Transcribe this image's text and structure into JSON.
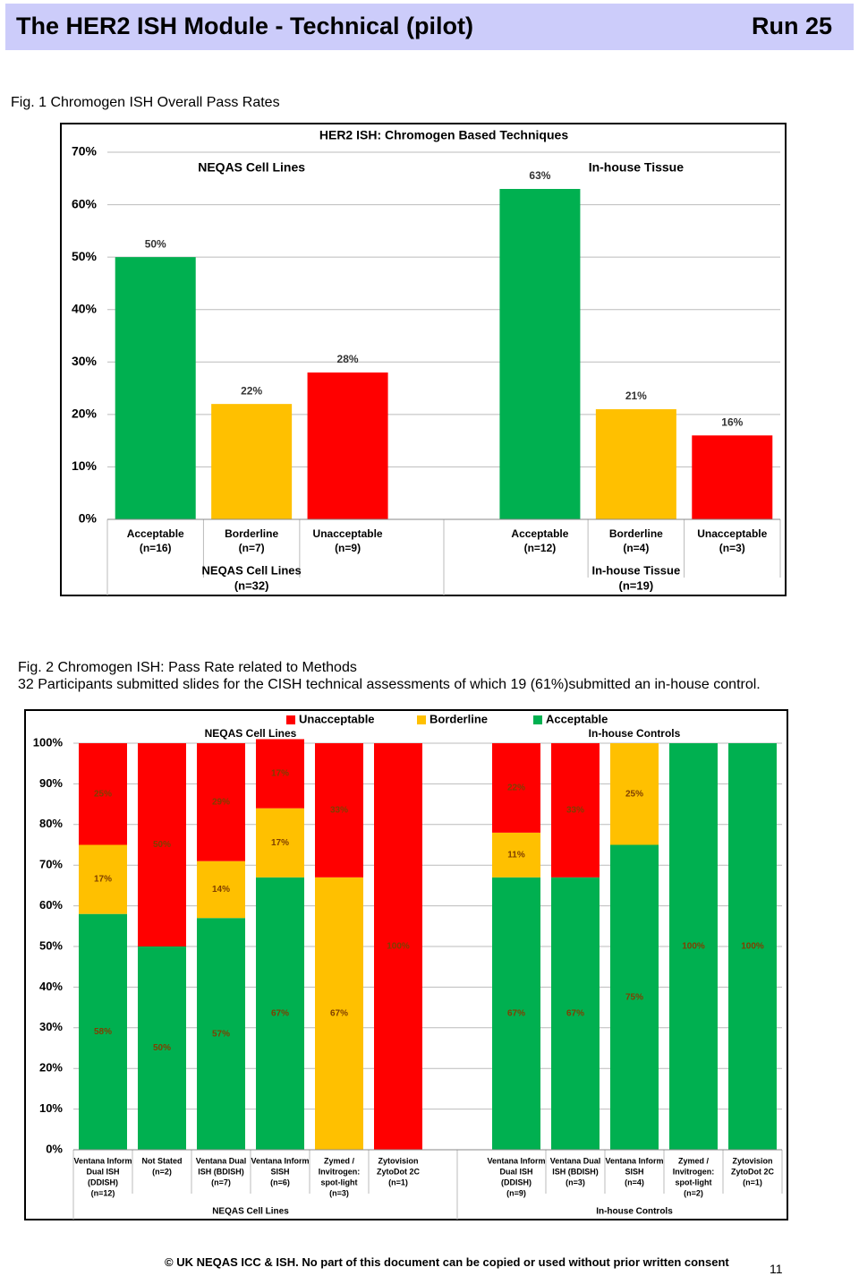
{
  "header": {
    "title": "The HER2 ISH Module - Technical (pilot)",
    "run": "Run 25"
  },
  "figures": [
    {
      "caption": "Fig. 1 Chromogen ISH Overall Pass Rates"
    },
    {
      "caption": "Fig. 2 Chromogen ISH: Pass Rate related to Methods",
      "description": "32 Participants submitted slides for the CISH technical assessments of which 19 (61%)submitted an in-house control."
    }
  ],
  "chart_data": [
    {
      "type": "bar",
      "title": "HER2 ISH: Chromogen Based Techniques",
      "categories": [
        [
          "Acceptable",
          "(n=16)"
        ],
        [
          "Borderline",
          "(n=7)"
        ],
        [
          "Unacceptable",
          "(n=9)"
        ],
        null,
        [
          "Acceptable",
          "(n=12)"
        ],
        [
          "Borderline",
          "(n=4)"
        ],
        [
          "Unacceptable",
          "(n=3)"
        ]
      ],
      "values": [
        50,
        22,
        28,
        null,
        63,
        21,
        16
      ],
      "value_labels": [
        "50%",
        "22%",
        "28%",
        null,
        "63%",
        "21%",
        "16%"
      ],
      "colors": [
        "#00b050",
        "#ffc000",
        "#ff0000",
        null,
        "#00b050",
        "#ffc000",
        "#ff0000"
      ],
      "groups": [
        {
          "name": "NEQAS Cell Lines",
          "label": [
            "NEQAS Cell Lines",
            "(n=32)"
          ]
        },
        {
          "name": "In-house Tissue",
          "label": [
            "In-house Tissue",
            "(n=19)"
          ]
        }
      ],
      "ylim": [
        0,
        70
      ],
      "yticks": [
        {
          "value": 0,
          "label": "0%"
        },
        {
          "value": 10,
          "label": "10%"
        },
        {
          "value": 20,
          "label": "20%"
        },
        {
          "value": 30,
          "label": "30%"
        },
        {
          "value": 40,
          "label": "40%"
        },
        {
          "value": 50,
          "label": "50%"
        },
        {
          "value": 60,
          "label": "60%"
        },
        {
          "value": 70,
          "label": "70%"
        }
      ],
      "grid": true
    },
    {
      "type": "stacked_bar",
      "categories": [
        [
          "Ventana Inform",
          "Dual ISH",
          "(DDISH)",
          "(n=12)"
        ],
        [
          "Not Stated",
          "(n=2)"
        ],
        [
          "Ventana Dual",
          "ISH (BDISH)",
          "(n=7)"
        ],
        [
          "Ventana Inform",
          "SISH",
          "(n=6)"
        ],
        [
          "Zymed /",
          "Invitrogen:",
          "spot-light",
          "(n=3)"
        ],
        [
          "Zytovision",
          "ZytoDot 2C",
          "(n=1)"
        ],
        null,
        [
          "Ventana Inform",
          "Dual ISH",
          "(DDISH)",
          "(n=9)"
        ],
        [
          "Ventana Dual",
          "ISH (BDISH)",
          "(n=3)"
        ],
        [
          "Ventana Inform",
          "SISH",
          "(n=4)"
        ],
        [
          "Zymed /",
          "Invitrogen:",
          "spot-light",
          "(n=2)"
        ],
        [
          "Zytovision",
          "ZytoDot 2C",
          "(n=1)"
        ]
      ],
      "series": [
        {
          "name": "Acceptable",
          "color": "#00b050",
          "values": [
            58,
            50,
            57,
            67,
            null,
            null,
            null,
            67,
            67,
            75,
            100,
            100
          ],
          "value_labels": [
            "58%",
            "50%",
            "57%",
            "67%",
            null,
            null,
            null,
            "67%",
            "67%",
            "75%",
            "100%",
            "100%"
          ]
        },
        {
          "name": "Borderline",
          "color": "#ffc000",
          "values": [
            17,
            null,
            14,
            17,
            67,
            null,
            null,
            11,
            null,
            25,
            null,
            null
          ],
          "value_labels": [
            "17%",
            null,
            "14%",
            "17%",
            "67%",
            null,
            null,
            "11%",
            null,
            "25%",
            null,
            null
          ]
        },
        {
          "name": "Unacceptable",
          "color": "#ff0000",
          "values": [
            25,
            50,
            29,
            17,
            33,
            100,
            null,
            22,
            33,
            null,
            null,
            null
          ],
          "value_labels": [
            "25%",
            "50%",
            "29%",
            "17%",
            "33%",
            "100%",
            null,
            "22%",
            "33%",
            null,
            null,
            null
          ]
        }
      ],
      "groups": [
        {
          "name": "NEQAS Cell Lines",
          "label": [
            "NEQAS Cell Lines"
          ]
        },
        {
          "name": "In-house Controls",
          "label": [
            "In-house Controls"
          ]
        }
      ],
      "ylim": [
        0,
        100
      ],
      "yticks": [
        {
          "value": 0,
          "label": "0%"
        },
        {
          "value": 10,
          "label": "10%"
        },
        {
          "value": 20,
          "label": "20%"
        },
        {
          "value": 30,
          "label": "30%"
        },
        {
          "value": 40,
          "label": "40%"
        },
        {
          "value": 50,
          "label": "50%"
        },
        {
          "value": 60,
          "label": "60%"
        },
        {
          "value": 70,
          "label": "70%"
        },
        {
          "value": 80,
          "label": "80%"
        },
        {
          "value": 90,
          "label": "90%"
        },
        {
          "value": 100,
          "label": "100%"
        }
      ],
      "grid": true,
      "legend": "top"
    }
  ],
  "footer": {
    "copyright": "© UK NEQAS ICC & ISH. No part of this document can be copied or used without prior written consent",
    "page": "11"
  }
}
